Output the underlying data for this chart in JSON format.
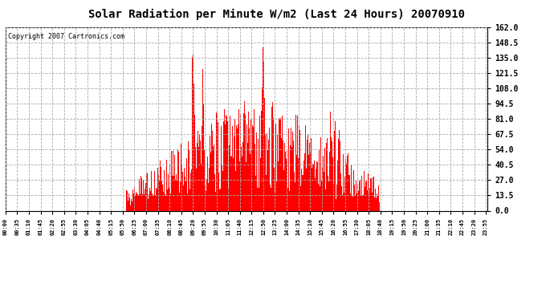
{
  "title": "Solar Radiation per Minute W/m2 (Last 24 Hours) 20070910",
  "copyright": "Copyright 2007 Cartronics.com",
  "bar_color": "#FF0000",
  "background_color": "#FFFFFF",
  "grid_color": "#AAAAAA",
  "baseline_color": "#FF0000",
  "y_ticks": [
    0.0,
    13.5,
    27.0,
    40.5,
    54.0,
    67.5,
    81.0,
    94.5,
    108.0,
    121.5,
    135.0,
    148.5,
    162.0
  ],
  "ylim": [
    0.0,
    162.0
  ],
  "x_labels": [
    "00:00",
    "00:35",
    "01:10",
    "01:45",
    "02:20",
    "02:55",
    "03:30",
    "04:05",
    "04:40",
    "05:15",
    "05:50",
    "06:25",
    "07:00",
    "07:35",
    "08:10",
    "08:45",
    "09:20",
    "09:55",
    "10:30",
    "11:05",
    "11:40",
    "12:15",
    "12:50",
    "13:25",
    "14:00",
    "14:35",
    "15:10",
    "15:45",
    "16:20",
    "16:55",
    "17:30",
    "18:05",
    "18:40",
    "19:15",
    "19:50",
    "20:25",
    "21:00",
    "21:35",
    "22:10",
    "22:45",
    "23:20",
    "23:55"
  ],
  "title_fontsize": 10,
  "copyright_fontsize": 6,
  "ytick_fontsize": 7,
  "xtick_fontsize": 5
}
